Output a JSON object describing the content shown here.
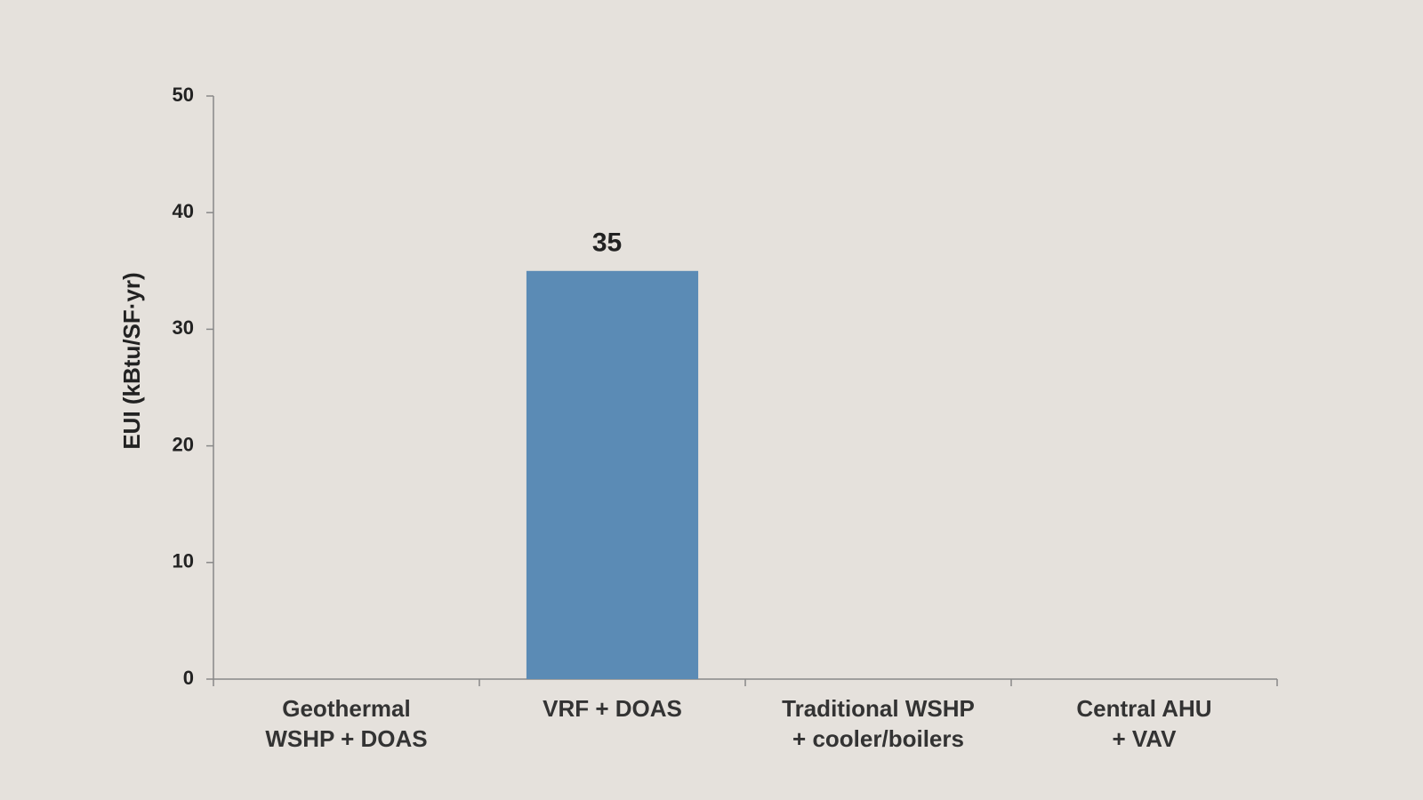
{
  "chart_data": {
    "type": "bar",
    "y_label": "EUI (kBtu/SF·yr)",
    "categories": [
      "Geothermal\nWSHP + DOAS",
      "VRF + DOAS",
      "Traditional WSHP\n+ cooler/boilers",
      "Central AHU\n+ VAV"
    ],
    "values": [
      null,
      35,
      null,
      null
    ],
    "color": "#5b8bb5",
    "ylim": [
      0,
      50
    ],
    "yticks": [
      0,
      10,
      20,
      30,
      40,
      50
    ],
    "grid": false
  }
}
